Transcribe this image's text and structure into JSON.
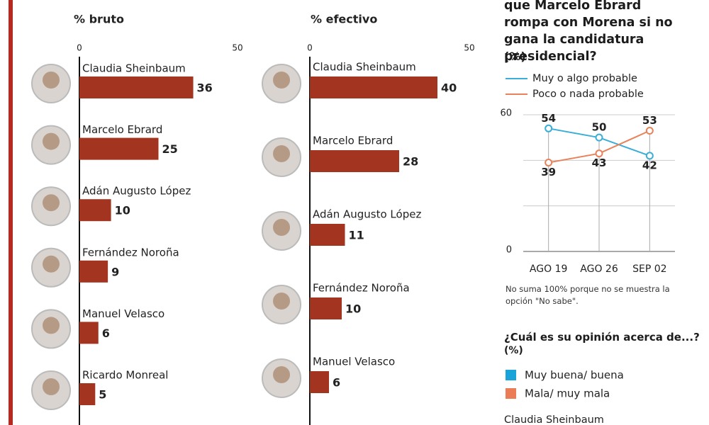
{
  "chart_data": [
    {
      "type": "bar",
      "orientation": "horizontal",
      "title": "% bruto",
      "categories": [
        "Claudia Sheinbaum",
        "Marcelo Ebrard",
        "Adán Augusto López",
        "Fernández Noroña",
        "Manuel Velasco",
        "Ricardo Monreal"
      ],
      "values": [
        36,
        25,
        10,
        9,
        6,
        5
      ],
      "color": "#a3341f",
      "xlim": [
        0,
        50
      ],
      "xticks": [
        0,
        50
      ]
    },
    {
      "type": "bar",
      "orientation": "horizontal",
      "title": "% efectivo",
      "categories": [
        "Claudia Sheinbaum",
        "Marcelo Ebrard",
        "Adán Augusto López",
        "Fernández Noroña",
        "Manuel Velasco"
      ],
      "values": [
        40,
        28,
        11,
        10,
        6
      ],
      "color": "#a3341f",
      "xlim": [
        0,
        50
      ],
      "xticks": [
        0,
        50
      ]
    },
    {
      "type": "line",
      "title": "que Marcelo Ebrard rompa con Morena si no gana la candidatura presidencial?",
      "subtitle": "(%)",
      "categories": [
        "AGO 19",
        "AGO 26",
        "SEP 02"
      ],
      "series": [
        {
          "name": "Muy o algo probable",
          "color": "#3aaed8",
          "values": [
            54,
            50,
            42
          ]
        },
        {
          "name": "Poco o nada probable",
          "color": "#e8825a",
          "values": [
            39,
            43,
            53
          ]
        }
      ],
      "ylim": [
        0,
        60
      ],
      "yticks": [
        0,
        60
      ],
      "ygrid": [
        20,
        40
      ],
      "note": "No suma 100% porque no se muestra la opción \"No sabe\"."
    },
    {
      "type": "bar",
      "title": "¿Cuál es su opinión acerca de...?",
      "subtitle": "(%)",
      "series": [
        {
          "name": "Muy buena/ buena",
          "color": "#1aa3d9"
        },
        {
          "name": "Mala/ muy mala",
          "color": "#ea7d55"
        }
      ],
      "categories": [
        "Claudia Sheinbaum"
      ]
    }
  ]
}
